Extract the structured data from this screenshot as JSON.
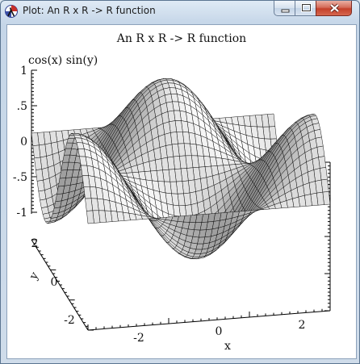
{
  "window": {
    "title": "Plot: An R x R -> R function",
    "icon": "racket-lambda-icon",
    "controls": [
      "minimize-icon",
      "maximize-icon",
      "close-icon"
    ],
    "close_color": "#c7412c"
  },
  "plot": {
    "title": "An R x R -> R function",
    "zlabel": "cos(x) sin(y)",
    "xlabel": "x",
    "ylabel": "y",
    "z_ticks": [
      "1",
      ".5",
      "0",
      "-.5",
      "-1"
    ],
    "x_ticks": [
      "-2",
      "0",
      "2"
    ],
    "y_ticks": [
      "2",
      "0",
      "-2"
    ],
    "surface_color": "#ffffff",
    "edge_color": "#000000"
  },
  "chart_data": {
    "type": "surface3d",
    "title": "An R x R -> R function",
    "function": "cos(x) sin(y)",
    "xlabel": "x",
    "ylabel": "y",
    "zlabel": "cos(x) sin(y)",
    "x_range": [
      -3.14159,
      3.14159
    ],
    "y_range": [
      -3.14159,
      3.14159
    ],
    "z_range": [
      -1,
      1
    ],
    "x_ticks": [
      -2,
      0,
      2
    ],
    "y_ticks": [
      -2,
      0,
      2
    ],
    "z_ticks": [
      -1,
      -0.5,
      0,
      0.5,
      1
    ],
    "grid_samples": 41
  }
}
